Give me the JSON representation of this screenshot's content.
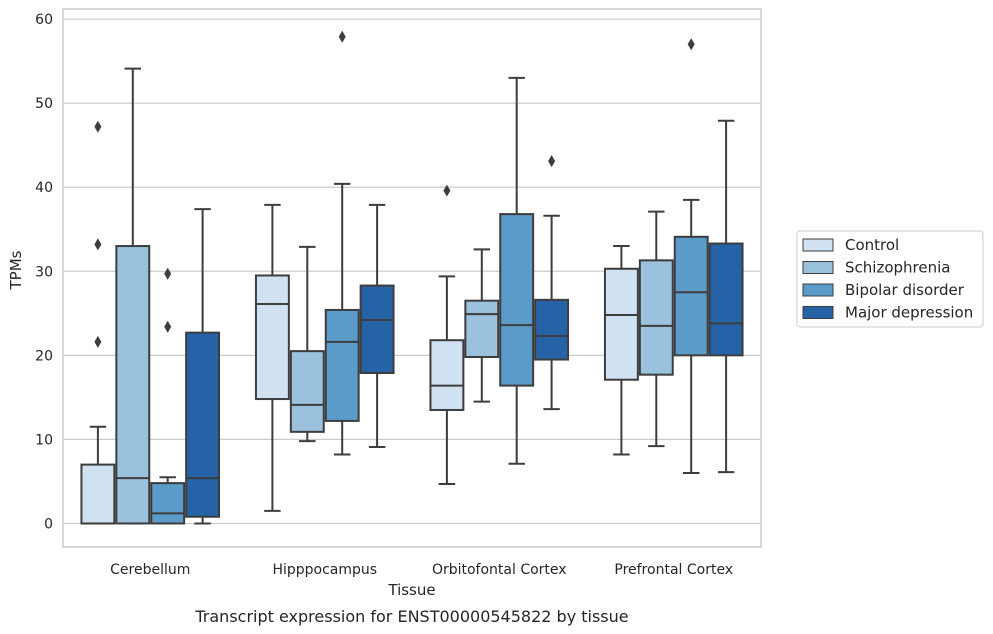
{
  "caption": "Transcript expression for ENST00000545822 by tissue",
  "chart_data": {
    "type": "box",
    "xlabel": "Tissue",
    "ylabel": "TPMs",
    "ylim": [
      -2.8,
      61.2
    ],
    "yticks": [
      0,
      10,
      20,
      30,
      40,
      50,
      60
    ],
    "grid": true,
    "legend_position": "right",
    "categories": [
      "Cerebellum",
      "Hipppocampus",
      "Orbitofontal Cortex",
      "Prefrontal Cortex"
    ],
    "series": [
      {
        "name": "Control",
        "color": "#d0e1f2",
        "boxes": [
          {
            "min": 0,
            "q1": 0,
            "median": 0,
            "q3": 7.0,
            "max": 11.5,
            "outliers": [
              21.6,
              33.2,
              47.2
            ]
          },
          {
            "min": 1.5,
            "q1": 14.8,
            "median": 26.1,
            "q3": 29.5,
            "max": 37.9,
            "outliers": []
          },
          {
            "min": 4.7,
            "q1": 13.5,
            "median": 16.4,
            "q3": 21.8,
            "max": 29.4,
            "outliers": [
              39.6
            ]
          },
          {
            "min": 8.2,
            "q1": 17.1,
            "median": 24.8,
            "q3": 30.3,
            "max": 33.0,
            "outliers": []
          }
        ]
      },
      {
        "name": "Schizophrenia",
        "color": "#9ac2dc",
        "boxes": [
          {
            "min": 0,
            "q1": 0,
            "median": 5.4,
            "q3": 33.0,
            "max": 54.1,
            "outliers": []
          },
          {
            "min": 9.8,
            "q1": 10.9,
            "median": 14.1,
            "q3": 20.5,
            "max": 32.9,
            "outliers": []
          },
          {
            "min": 14.5,
            "q1": 19.8,
            "median": 24.9,
            "q3": 26.5,
            "max": 32.6,
            "outliers": []
          },
          {
            "min": 9.2,
            "q1": 17.7,
            "median": 23.5,
            "q3": 31.3,
            "max": 37.1,
            "outliers": []
          }
        ]
      },
      {
        "name": "Bipolar disorder",
        "color": "#5a9bc9",
        "boxes": [
          {
            "min": 0,
            "q1": 0,
            "median": 1.2,
            "q3": 4.8,
            "max": 5.5,
            "outliers": [
              23.4,
              29.7
            ]
          },
          {
            "min": 8.2,
            "q1": 12.2,
            "median": 21.6,
            "q3": 25.4,
            "max": 40.4,
            "outliers": [
              57.9
            ]
          },
          {
            "min": 7.1,
            "q1": 16.4,
            "median": 23.6,
            "q3": 36.8,
            "max": 53.0,
            "outliers": []
          },
          {
            "min": 6.0,
            "q1": 20.0,
            "median": 27.5,
            "q3": 34.1,
            "max": 38.5,
            "outliers": [
              57.0
            ]
          }
        ]
      },
      {
        "name": "Major depression",
        "color": "#2563a6",
        "boxes": [
          {
            "min": 0,
            "q1": 0.8,
            "median": 5.4,
            "q3": 22.7,
            "max": 37.4,
            "outliers": []
          },
          {
            "min": 9.1,
            "q1": 17.9,
            "median": 24.2,
            "q3": 28.3,
            "max": 37.9,
            "outliers": []
          },
          {
            "min": 13.6,
            "q1": 19.5,
            "median": 22.3,
            "q3": 26.6,
            "max": 36.6,
            "outliers": [
              43.1
            ]
          },
          {
            "min": 6.1,
            "q1": 20.0,
            "median": 23.8,
            "q3": 33.3,
            "max": 47.9,
            "outliers": []
          }
        ]
      }
    ]
  }
}
